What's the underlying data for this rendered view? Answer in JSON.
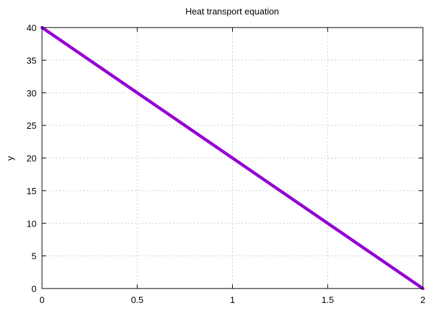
{
  "chart_data": {
    "type": "line",
    "title": "Heat transport equation",
    "xlabel": "",
    "ylabel": "y",
    "xlim": [
      0,
      2
    ],
    "ylim": [
      0,
      40
    ],
    "xticks": [
      0,
      0.5,
      1,
      1.5,
      2
    ],
    "xtick_labels": [
      "0",
      "0.5",
      "1",
      "1.5",
      "2"
    ],
    "yticks": [
      0,
      5,
      10,
      15,
      20,
      25,
      30,
      35,
      40
    ],
    "ytick_labels": [
      "0",
      "5",
      "10",
      "15",
      "20",
      "25",
      "30",
      "35",
      "40"
    ],
    "grid": true,
    "legend": "none",
    "series": [
      {
        "color": "#9400d3",
        "x": [
          0,
          0.25,
          0.5,
          0.75,
          1,
          1.25,
          1.5,
          1.75,
          2
        ],
        "y": [
          40,
          35,
          30,
          25,
          20,
          15,
          10,
          5,
          0
        ]
      }
    ]
  }
}
